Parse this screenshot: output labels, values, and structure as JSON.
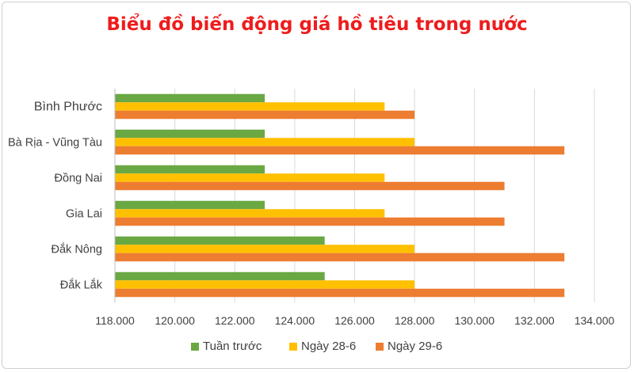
{
  "chart_data": {
    "type": "bar",
    "orientation": "horizontal",
    "title": "Biểu đồ biến động giá hồ tiêu trong nước",
    "categories": [
      "Bình Phước",
      "Bà Rịa - Vũng Tàu",
      "Đồng Nai",
      "Gia Lai",
      "Đắk Nông",
      "Đắk Lắk"
    ],
    "series": [
      {
        "name": "Tuần trước",
        "color": "#6aa843",
        "values": [
          123000,
          123000,
          123000,
          123000,
          125000,
          125000
        ]
      },
      {
        "name": "Ngày 28-6",
        "color": "#ffc000",
        "values": [
          127000,
          128000,
          127000,
          127000,
          128000,
          128000
        ]
      },
      {
        "name": "Ngày 29-6",
        "color": "#ed7d31",
        "values": [
          128000,
          133000,
          131000,
          131000,
          133000,
          133000
        ]
      }
    ],
    "xlim": [
      118000,
      134000
    ],
    "xticks": [
      118000,
      120000,
      122000,
      124000,
      126000,
      128000,
      130000,
      132000,
      134000
    ],
    "tick_labels": [
      "118.000",
      "120.000",
      "122.000",
      "124.000",
      "126.000",
      "128.000",
      "130.000",
      "132.000",
      "134.000"
    ],
    "grid": true,
    "legend_position": "bottom"
  }
}
